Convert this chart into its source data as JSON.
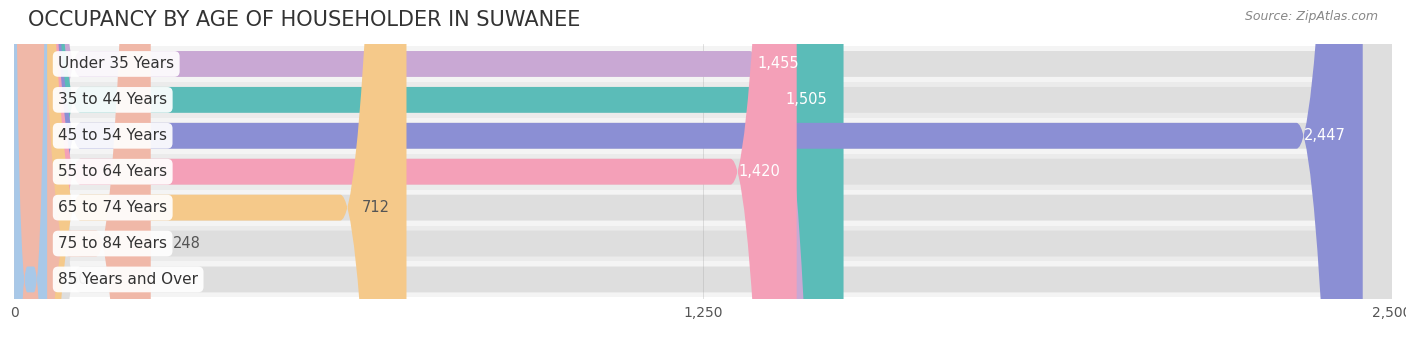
{
  "title": "OCCUPANCY BY AGE OF HOUSEHOLDER IN SUWANEE",
  "source": "Source: ZipAtlas.com",
  "categories": [
    "Under 35 Years",
    "35 to 44 Years",
    "45 to 54 Years",
    "55 to 64 Years",
    "65 to 74 Years",
    "75 to 84 Years",
    "85 Years and Over"
  ],
  "values": [
    1455,
    1505,
    2447,
    1420,
    712,
    248,
    60
  ],
  "bar_colors": [
    "#c9a8d4",
    "#5bbcb8",
    "#8b8fd4",
    "#f4a0b8",
    "#f5c98a",
    "#f0b8a8",
    "#a8c8e8"
  ],
  "bar_bg_color": "#e8e8e8",
  "row_bg_colors": [
    "#f0f0f0",
    "#e8e8e8"
  ],
  "x_max": 2500,
  "x_ticks": [
    0,
    1250,
    2500
  ],
  "value_label_color_inside": "#ffffff",
  "value_label_color_outside": "#555555",
  "title_fontsize": 15,
  "label_fontsize": 11,
  "value_fontsize": 10.5,
  "source_fontsize": 9,
  "background_color": "#ffffff"
}
